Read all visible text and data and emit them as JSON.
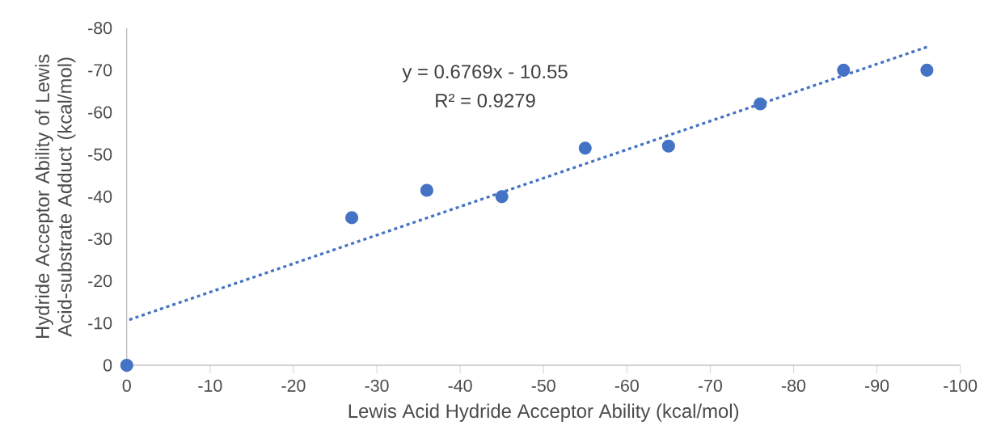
{
  "chart_data": {
    "type": "scatter",
    "xlabel": "Lewis Acid Hydride Acceptor Ability (kcal/mol)",
    "ylabel": "Hydride Acceptor Ability of Lewis Acid-substrate Adduct (kcal/mol)",
    "xlim": [
      0,
      -100
    ],
    "xticks": [
      0,
      -10,
      -20,
      -30,
      -40,
      -50,
      -60,
      -70,
      -80,
      -90,
      -100
    ],
    "ylim": [
      0,
      -80
    ],
    "yticks": [
      0,
      -10,
      -20,
      -30,
      -40,
      -50,
      -60,
      -70,
      -80
    ],
    "grid": false,
    "marker": "circle",
    "annotations": [
      "y = 0.6769x - 10.55",
      "R² = 0.9279"
    ],
    "series": [
      {
        "color": "#4472c4",
        "x": [
          0,
          -27,
          -36,
          -45,
          -55,
          -65,
          -76,
          -86,
          -96
        ],
        "values": [
          0,
          -35,
          -41.5,
          -40,
          -51.5,
          -52,
          -62,
          -70,
          -70
        ]
      },
      {
        "type": "line",
        "color": "#4472c4",
        "marker": "none",
        "line_style": "dotted",
        "x": [
          -96,
          0
        ],
        "values": [
          -75.5,
          -10.6
        ]
      }
    ]
  }
}
